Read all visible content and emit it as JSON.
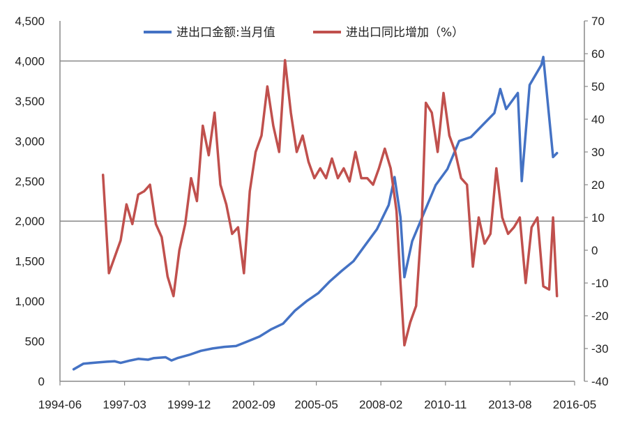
{
  "chart_data": {
    "type": "line",
    "title": "",
    "xlabel": "",
    "ylabel": "",
    "grid": "horizontal major gridlines",
    "legend_position": "top",
    "x_tick_labels": [
      "1994-06",
      "1997-03",
      "1999-12",
      "2002-09",
      "2005-05",
      "2008-02",
      "2010-11",
      "2013-08",
      "2016-05"
    ],
    "x_range": [
      "1994-06",
      "2016-05"
    ],
    "y_left": {
      "range": [
        0,
        4500
      ],
      "tick_labels": [
        "0",
        "500",
        "1,000",
        "1,500",
        "2,000",
        "2,500",
        "3,000",
        "3,500",
        "4,000",
        "4,500"
      ]
    },
    "y_right": {
      "range": [
        -40,
        70
      ],
      "tick_labels": [
        "-40",
        "-30",
        "-20",
        "-10",
        "0",
        "10",
        "20",
        "30",
        "40",
        "50",
        "60",
        "70"
      ]
    },
    "series": [
      {
        "name": "进出口金额:当月值",
        "axis": "left",
        "color": "#4472C4",
        "points": [
          [
            "1995-01",
            150
          ],
          [
            "1995-06",
            220
          ],
          [
            "1996-01",
            235
          ],
          [
            "1996-06",
            245
          ],
          [
            "1996-10",
            250
          ],
          [
            "1997-01",
            230
          ],
          [
            "1997-06",
            260
          ],
          [
            "1997-10",
            280
          ],
          [
            "1998-03",
            270
          ],
          [
            "1998-06",
            290
          ],
          [
            "1998-12",
            300
          ],
          [
            "1999-03",
            260
          ],
          [
            "1999-06",
            290
          ],
          [
            "1999-12",
            330
          ],
          [
            "2000-06",
            380
          ],
          [
            "2000-12",
            410
          ],
          [
            "2001-06",
            430
          ],
          [
            "2001-12",
            440
          ],
          [
            "2002-06",
            500
          ],
          [
            "2002-12",
            560
          ],
          [
            "2003-06",
            650
          ],
          [
            "2003-12",
            720
          ],
          [
            "2004-06",
            880
          ],
          [
            "2004-12",
            1000
          ],
          [
            "2005-06",
            1100
          ],
          [
            "2005-12",
            1250
          ],
          [
            "2006-06",
            1380
          ],
          [
            "2006-12",
            1500
          ],
          [
            "2007-06",
            1700
          ],
          [
            "2007-12",
            1900
          ],
          [
            "2008-06",
            2200
          ],
          [
            "2008-09",
            2550
          ],
          [
            "2008-12",
            2050
          ],
          [
            "2009-02",
            1300
          ],
          [
            "2009-06",
            1750
          ],
          [
            "2009-12",
            2100
          ],
          [
            "2010-06",
            2450
          ],
          [
            "2010-12",
            2650
          ],
          [
            "2011-06",
            3000
          ],
          [
            "2011-12",
            3050
          ],
          [
            "2012-06",
            3200
          ],
          [
            "2012-12",
            3350
          ],
          [
            "2013-03",
            3650
          ],
          [
            "2013-06",
            3400
          ],
          [
            "2013-12",
            3600
          ],
          [
            "2014-02",
            2500
          ],
          [
            "2014-06",
            3700
          ],
          [
            "2014-12",
            3950
          ],
          [
            "2015-01",
            4050
          ],
          [
            "2015-06",
            2800
          ],
          [
            "2015-08",
            2850
          ]
        ]
      },
      {
        "name": "进出口同比增加（%）",
        "axis": "right",
        "color": "#C0504D",
        "points": [
          [
            "1996-04",
            23
          ],
          [
            "1996-07",
            -7
          ],
          [
            "1996-10",
            -2
          ],
          [
            "1997-01",
            3
          ],
          [
            "1997-04",
            14
          ],
          [
            "1997-07",
            8
          ],
          [
            "1997-10",
            17
          ],
          [
            "1998-01",
            18
          ],
          [
            "1998-04",
            20
          ],
          [
            "1998-07",
            8
          ],
          [
            "1998-10",
            4
          ],
          [
            "1999-01",
            -8
          ],
          [
            "1999-04",
            -14
          ],
          [
            "1999-07",
            0
          ],
          [
            "1999-10",
            8
          ],
          [
            "2000-01",
            22
          ],
          [
            "2000-04",
            15
          ],
          [
            "2000-07",
            38
          ],
          [
            "2000-10",
            29
          ],
          [
            "2001-01",
            42
          ],
          [
            "2001-04",
            20
          ],
          [
            "2001-07",
            14
          ],
          [
            "2001-10",
            5
          ],
          [
            "2002-01",
            7
          ],
          [
            "2002-04",
            -7
          ],
          [
            "2002-07",
            18
          ],
          [
            "2002-10",
            30
          ],
          [
            "2003-01",
            35
          ],
          [
            "2003-04",
            50
          ],
          [
            "2003-07",
            38
          ],
          [
            "2003-10",
            30
          ],
          [
            "2004-01",
            58
          ],
          [
            "2004-04",
            42
          ],
          [
            "2004-07",
            30
          ],
          [
            "2004-10",
            35
          ],
          [
            "2005-01",
            27
          ],
          [
            "2005-04",
            22
          ],
          [
            "2005-07",
            25
          ],
          [
            "2005-10",
            22
          ],
          [
            "2006-01",
            28
          ],
          [
            "2006-04",
            22
          ],
          [
            "2006-07",
            25
          ],
          [
            "2006-10",
            21
          ],
          [
            "2007-01",
            30
          ],
          [
            "2007-04",
            22
          ],
          [
            "2007-07",
            22
          ],
          [
            "2007-10",
            20
          ],
          [
            "2008-01",
            25
          ],
          [
            "2008-04",
            31
          ],
          [
            "2008-07",
            25
          ],
          [
            "2008-10",
            12
          ],
          [
            "2008-12",
            -10
          ],
          [
            "2009-02",
            -29
          ],
          [
            "2009-05",
            -22
          ],
          [
            "2009-08",
            -17
          ],
          [
            "2009-11",
            10
          ],
          [
            "2010-01",
            45
          ],
          [
            "2010-04",
            42
          ],
          [
            "2010-07",
            30
          ],
          [
            "2010-10",
            48
          ],
          [
            "2011-01",
            35
          ],
          [
            "2011-04",
            30
          ],
          [
            "2011-07",
            22
          ],
          [
            "2011-10",
            20
          ],
          [
            "2012-01",
            -5
          ],
          [
            "2012-04",
            10
          ],
          [
            "2012-07",
            2
          ],
          [
            "2012-10",
            5
          ],
          [
            "2013-01",
            25
          ],
          [
            "2013-04",
            10
          ],
          [
            "2013-07",
            5
          ],
          [
            "2013-10",
            7
          ],
          [
            "2014-01",
            10
          ],
          [
            "2014-04",
            -10
          ],
          [
            "2014-07",
            7
          ],
          [
            "2014-10",
            10
          ],
          [
            "2015-01",
            -11
          ],
          [
            "2015-04",
            -12
          ],
          [
            "2015-06",
            10
          ],
          [
            "2015-08",
            -14
          ]
        ]
      }
    ]
  }
}
